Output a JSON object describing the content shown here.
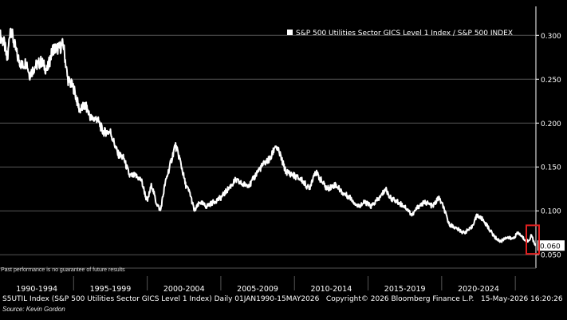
{
  "chart_data": {
    "type": "line",
    "title": "",
    "legend": [
      "S&P 500 Utilities Sector GICS Level 1 Index / S&P 500 INDEX"
    ],
    "legend_position": "top-right",
    "y_ticks": [
      "0.300",
      "0.250",
      "0.200",
      "0.150",
      "0.100",
      "0.050"
    ],
    "y_tick_values": [
      0.3,
      0.25,
      0.2,
      0.15,
      0.1,
      0.05
    ],
    "ylim": [
      0.042,
      0.333
    ],
    "x_tick_labels": [
      "1990-1994",
      "1995-1999",
      "2000-2004",
      "2005-2009",
      "2010-2014",
      "2015-2019",
      "2020-2024"
    ],
    "xlim": [
      1990.0,
      2026.4
    ],
    "grid": true,
    "last_value_label": "0.060",
    "highlight": "red box around latest values (2026)",
    "series": [
      {
        "points": [
          [
            1990.0,
            0.3
          ],
          [
            1990.3,
            0.29
          ],
          [
            1990.5,
            0.27
          ],
          [
            1990.7,
            0.31
          ],
          [
            1990.9,
            0.295
          ],
          [
            1991.2,
            0.275
          ],
          [
            1991.5,
            0.265
          ],
          [
            1991.8,
            0.27
          ],
          [
            1992.0,
            0.255
          ],
          [
            1992.4,
            0.265
          ],
          [
            1992.8,
            0.27
          ],
          [
            1993.2,
            0.26
          ],
          [
            1993.6,
            0.285
          ],
          [
            1994.0,
            0.285
          ],
          [
            1994.3,
            0.29
          ],
          [
            1994.6,
            0.25
          ],
          [
            1995.0,
            0.24
          ],
          [
            1995.4,
            0.215
          ],
          [
            1995.8,
            0.22
          ],
          [
            1996.2,
            0.205
          ],
          [
            1996.6,
            0.205
          ],
          [
            1997.0,
            0.19
          ],
          [
            1997.5,
            0.19
          ],
          [
            1998.0,
            0.165
          ],
          [
            1998.4,
            0.16
          ],
          [
            1998.8,
            0.14
          ],
          [
            1999.2,
            0.14
          ],
          [
            1999.6,
            0.135
          ],
          [
            2000.0,
            0.11
          ],
          [
            2000.3,
            0.13
          ],
          [
            2000.6,
            0.11
          ],
          [
            2000.9,
            0.1
          ],
          [
            2001.2,
            0.13
          ],
          [
            2001.6,
            0.155
          ],
          [
            2001.9,
            0.175
          ],
          [
            2002.2,
            0.16
          ],
          [
            2002.6,
            0.13
          ],
          [
            2002.9,
            0.12
          ],
          [
            2003.2,
            0.1
          ],
          [
            2003.6,
            0.11
          ],
          [
            2004.0,
            0.105
          ],
          [
            2004.5,
            0.11
          ],
          [
            2005.0,
            0.115
          ],
          [
            2005.5,
            0.125
          ],
          [
            2006.0,
            0.135
          ],
          [
            2006.5,
            0.13
          ],
          [
            2007.0,
            0.13
          ],
          [
            2007.5,
            0.145
          ],
          [
            2008.0,
            0.155
          ],
          [
            2008.4,
            0.16
          ],
          [
            2008.7,
            0.175
          ],
          [
            2009.0,
            0.165
          ],
          [
            2009.4,
            0.145
          ],
          [
            2010.0,
            0.14
          ],
          [
            2010.5,
            0.135
          ],
          [
            2011.0,
            0.125
          ],
          [
            2011.4,
            0.145
          ],
          [
            2011.8,
            0.135
          ],
          [
            2012.2,
            0.125
          ],
          [
            2012.8,
            0.13
          ],
          [
            2013.3,
            0.12
          ],
          [
            2013.8,
            0.115
          ],
          [
            2014.3,
            0.105
          ],
          [
            2014.8,
            0.11
          ],
          [
            2015.2,
            0.105
          ],
          [
            2015.8,
            0.115
          ],
          [
            2016.2,
            0.125
          ],
          [
            2016.5,
            0.115
          ],
          [
            2017.0,
            0.11
          ],
          [
            2017.5,
            0.105
          ],
          [
            2018.0,
            0.095
          ],
          [
            2018.4,
            0.105
          ],
          [
            2018.9,
            0.11
          ],
          [
            2019.4,
            0.105
          ],
          [
            2019.8,
            0.115
          ],
          [
            2020.1,
            0.105
          ],
          [
            2020.5,
            0.085
          ],
          [
            2021.0,
            0.08
          ],
          [
            2021.5,
            0.075
          ],
          [
            2022.0,
            0.08
          ],
          [
            2022.4,
            0.095
          ],
          [
            2022.8,
            0.09
          ],
          [
            2023.2,
            0.08
          ],
          [
            2023.6,
            0.07
          ],
          [
            2024.0,
            0.065
          ],
          [
            2024.4,
            0.07
          ],
          [
            2024.8,
            0.068
          ],
          [
            2025.2,
            0.075
          ],
          [
            2025.6,
            0.068
          ],
          [
            2025.9,
            0.065
          ],
          [
            2026.1,
            0.073
          ],
          [
            2026.3,
            0.062
          ],
          [
            2026.37,
            0.06
          ]
        ]
      }
    ]
  },
  "disclaimer": "Past performance is no guarantee of future results",
  "footer": "S5UTIL Index (S&P 500 Utilities Sector GICS Level 1 Index) Daily 01JAN1990-15MAY2026   Copyright© 2026 Bloomberg Finance L.P.   15-May-2026 16:20:26",
  "source": "Source: Kevin Gordon",
  "colors": {
    "background": "#000000",
    "line": "#ffffff",
    "grid": "#555555",
    "highlight": "#e02020",
    "axis": "#ffffff"
  }
}
